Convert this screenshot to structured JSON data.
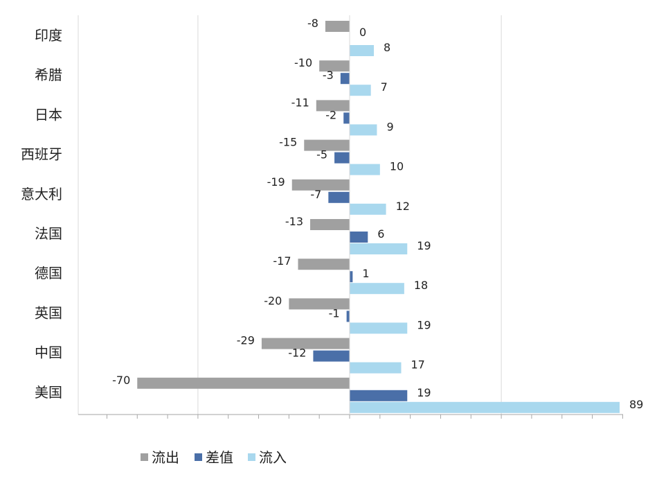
{
  "chart_data": {
    "type": "bar",
    "orientation": "horizontal",
    "title": "",
    "xlabel": "",
    "ylabel": "",
    "categories": [
      "印度",
      "希腊",
      "日本",
      "西班牙",
      "意大利",
      "法国",
      "德国",
      "英国",
      "中国",
      "美国"
    ],
    "series": [
      {
        "name": "流出",
        "color": "#a0a0a0",
        "values": [
          -8,
          -10,
          -11,
          -15,
          -19,
          -13,
          -17,
          -20,
          -29,
          -70
        ]
      },
      {
        "name": "差值",
        "color": "#4a6fa8",
        "values": [
          0,
          -3,
          -2,
          -5,
          -7,
          6,
          1,
          -1,
          -12,
          19
        ]
      },
      {
        "name": "流入",
        "color": "#a9d8ee",
        "values": [
          8,
          7,
          9,
          10,
          12,
          19,
          18,
          19,
          17,
          89
        ]
      }
    ],
    "xlim": [
      -90,
      90
    ],
    "grid": true,
    "legend_position": "bottom-left"
  }
}
